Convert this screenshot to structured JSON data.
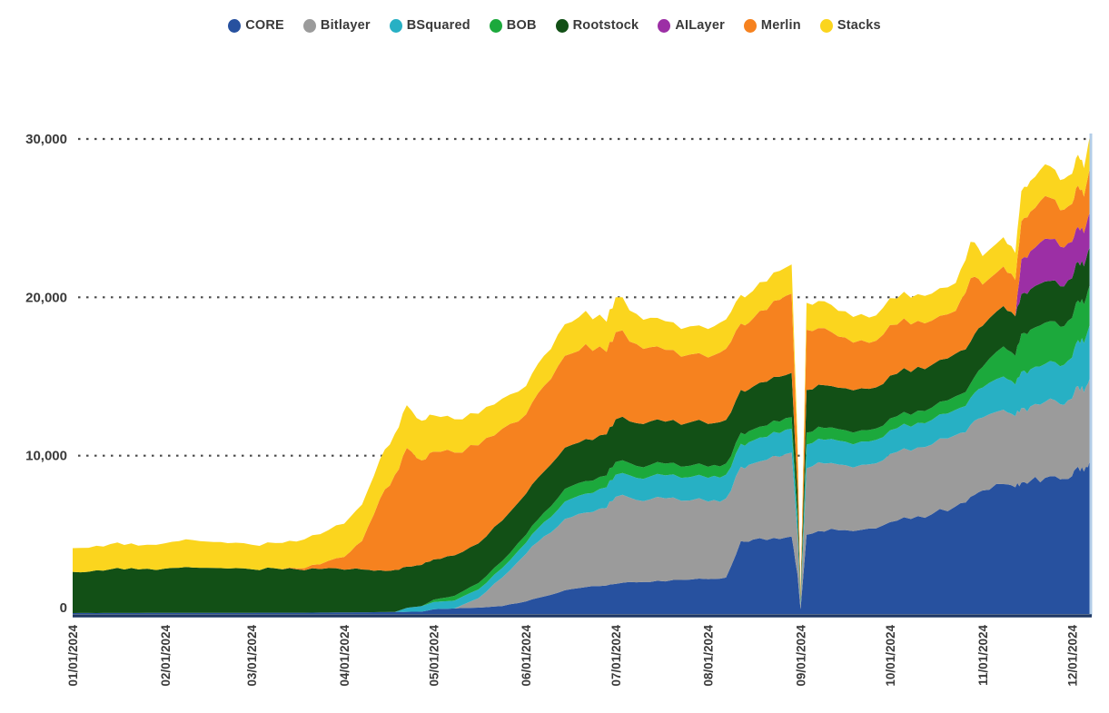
{
  "chart_data": {
    "type": "area",
    "stacked": true,
    "title": "",
    "xlabel": "",
    "ylabel": "",
    "ylim": [
      0,
      30000
    ],
    "x_domain_days": [
      0,
      341
    ],
    "grid": "horizontal-dotted",
    "legend_position": "top-center",
    "y_ticks": [
      {
        "value": 0,
        "label": "0"
      },
      {
        "value": 10000,
        "label": "10,000"
      },
      {
        "value": 20000,
        "label": "20,000"
      },
      {
        "value": 30000,
        "label": "30,000"
      }
    ],
    "x_ticks": [
      {
        "day": 0,
        "label": "01/01/2024"
      },
      {
        "day": 31,
        "label": "02/01/2024"
      },
      {
        "day": 60,
        "label": "03/01/2024"
      },
      {
        "day": 91,
        "label": "04/01/2024"
      },
      {
        "day": 121,
        "label": "05/01/2024"
      },
      {
        "day": 152,
        "label": "06/01/2024"
      },
      {
        "day": 182,
        "label": "07/01/2024"
      },
      {
        "day": 213,
        "label": "08/01/2024"
      },
      {
        "day": 244,
        "label": "09/01/2024"
      },
      {
        "day": 274,
        "label": "10/01/2024"
      },
      {
        "day": 305,
        "label": "11/01/2024"
      },
      {
        "day": 335,
        "label": "12/01/2024"
      }
    ],
    "days": [
      0,
      8,
      15,
      22,
      31,
      38,
      45,
      52,
      60,
      68,
      75,
      83,
      91,
      97,
      103,
      108,
      112,
      117,
      121,
      128,
      136,
      144,
      152,
      158,
      165,
      172,
      179,
      182,
      189,
      196,
      204,
      213,
      219,
      224,
      228,
      235,
      241,
      243,
      244,
      246,
      252,
      259,
      267,
      274,
      281,
      288,
      296,
      301,
      305,
      312,
      316,
      318,
      321,
      326,
      331,
      335,
      337,
      339,
      341
    ],
    "series": [
      {
        "name": "CORE",
        "color": "#27519f",
        "values": [
          60,
          60,
          65,
          65,
          70,
          70,
          70,
          75,
          75,
          80,
          80,
          90,
          100,
          110,
          120,
          130,
          140,
          150,
          300,
          350,
          400,
          500,
          800,
          1100,
          1500,
          1700,
          1800,
          1900,
          2000,
          2100,
          2150,
          2200,
          2300,
          4600,
          4700,
          4800,
          4900,
          2500,
          300,
          5000,
          5200,
          5300,
          5400,
          5800,
          6000,
          6300,
          6800,
          7400,
          7800,
          8200,
          8000,
          8300,
          8400,
          8600,
          8500,
          8700,
          9300,
          9000,
          9700
        ]
      },
      {
        "name": "Bitlayer",
        "color": "#9b9b9b",
        "values": [
          0,
          0,
          0,
          0,
          0,
          0,
          0,
          0,
          0,
          0,
          0,
          0,
          0,
          0,
          0,
          0,
          0,
          0,
          0,
          0,
          600,
          1800,
          3000,
          3800,
          4500,
          4700,
          4900,
          5500,
          5200,
          5300,
          5000,
          4900,
          5000,
          4700,
          4800,
          5200,
          5300,
          2500,
          250,
          4200,
          4300,
          4100,
          4050,
          4300,
          4300,
          4400,
          4500,
          4550,
          4600,
          4700,
          4500,
          4700,
          4700,
          4800,
          4750,
          4900,
          5100,
          5000,
          5200
        ]
      },
      {
        "name": "BSquared",
        "color": "#27b0c4",
        "values": [
          0,
          0,
          0,
          0,
          0,
          0,
          0,
          0,
          0,
          0,
          0,
          0,
          0,
          0,
          0,
          0,
          250,
          350,
          450,
          500,
          550,
          600,
          700,
          900,
          1100,
          1200,
          1300,
          1400,
          1400,
          1450,
          1450,
          1500,
          1500,
          1450,
          1450,
          1500,
          1500,
          800,
          120,
          1500,
          1500,
          1480,
          1450,
          1500,
          1520,
          1550,
          1600,
          1700,
          1900,
          2100,
          2000,
          2300,
          2350,
          2400,
          2400,
          2600,
          2900,
          3100,
          3400
        ]
      },
      {
        "name": "BOB",
        "color": "#1ca93c",
        "values": [
          0,
          0,
          0,
          0,
          0,
          0,
          0,
          0,
          0,
          0,
          0,
          0,
          0,
          0,
          0,
          0,
          0,
          0,
          150,
          300,
          400,
          450,
          500,
          600,
          800,
          800,
          750,
          800,
          750,
          750,
          700,
          700,
          700,
          700,
          700,
          720,
          730,
          400,
          60,
          750,
          750,
          730,
          720,
          750,
          760,
          780,
          850,
          900,
          1300,
          1900,
          1800,
          2400,
          2500,
          2600,
          2500,
          2500,
          2500,
          2450,
          2500
        ]
      },
      {
        "name": "Rootstock",
        "color": "#125016",
        "values": [
          2600,
          2700,
          2850,
          2750,
          2800,
          2900,
          2850,
          2800,
          2750,
          2800,
          2750,
          2750,
          2700,
          2700,
          2650,
          2650,
          2600,
          2600,
          2550,
          2550,
          2500,
          2550,
          2600,
          2600,
          2600,
          2650,
          2600,
          2700,
          2700,
          2700,
          2650,
          2700,
          2750,
          2700,
          2700,
          2750,
          2800,
          1500,
          250,
          2700,
          2700,
          2650,
          2600,
          2700,
          2700,
          2700,
          2700,
          2650,
          2600,
          2550,
          2500,
          2500,
          2550,
          2600,
          2550,
          2500,
          2450,
          2400,
          2400
        ]
      },
      {
        "name": "AILayer",
        "color": "#9c2fa5",
        "values": [
          0,
          0,
          0,
          0,
          0,
          0,
          0,
          0,
          0,
          0,
          0,
          0,
          0,
          0,
          0,
          0,
          0,
          0,
          0,
          0,
          0,
          0,
          0,
          0,
          0,
          0,
          0,
          0,
          0,
          0,
          0,
          0,
          0,
          0,
          0,
          0,
          0,
          0,
          0,
          0,
          0,
          0,
          0,
          0,
          0,
          0,
          0,
          0,
          0,
          0,
          0,
          2200,
          2400,
          2700,
          2500,
          2300,
          2200,
          2100,
          2200
        ]
      },
      {
        "name": "Merlin",
        "color": "#f6821f",
        "values": [
          0,
          0,
          0,
          0,
          0,
          0,
          0,
          0,
          0,
          0,
          50,
          300,
          800,
          1800,
          4500,
          6000,
          7500,
          6600,
          6800,
          6500,
          6200,
          5800,
          5000,
          5400,
          5800,
          6000,
          5200,
          5500,
          5000,
          4600,
          4300,
          4200,
          4500,
          4200,
          4300,
          4800,
          5000,
          2500,
          300,
          3800,
          3600,
          3200,
          2900,
          3200,
          3000,
          2800,
          2700,
          4000,
          2600,
          2500,
          2300,
          2400,
          2500,
          2700,
          2300,
          2400,
          2600,
          2300,
          2800
        ]
      },
      {
        "name": "Stacks",
        "color": "#fbd51e",
        "values": [
          1500,
          1550,
          1600,
          1500,
          1600,
          1750,
          1650,
          1600,
          1550,
          1600,
          1700,
          1900,
          2100,
          2300,
          2500,
          2600,
          2700,
          2500,
          2300,
          2100,
          2000,
          1900,
          1800,
          1900,
          2000,
          2100,
          1900,
          2200,
          1900,
          1800,
          1750,
          1800,
          1850,
          1800,
          1750,
          1800,
          1850,
          900,
          120,
          1700,
          1700,
          1650,
          1600,
          1700,
          1700,
          1700,
          1750,
          2300,
          1800,
          1850,
          1700,
          1900,
          1950,
          2000,
          1900,
          1900,
          1950,
          1800,
          2000
        ]
      }
    ],
    "style": {
      "grid_color": "#4a4a4a",
      "axis_line_color": "#1f3864",
      "edge_line_color": "#b3cde8",
      "tick_label_color": "#3a3a3a",
      "background": "#ffffff"
    }
  }
}
